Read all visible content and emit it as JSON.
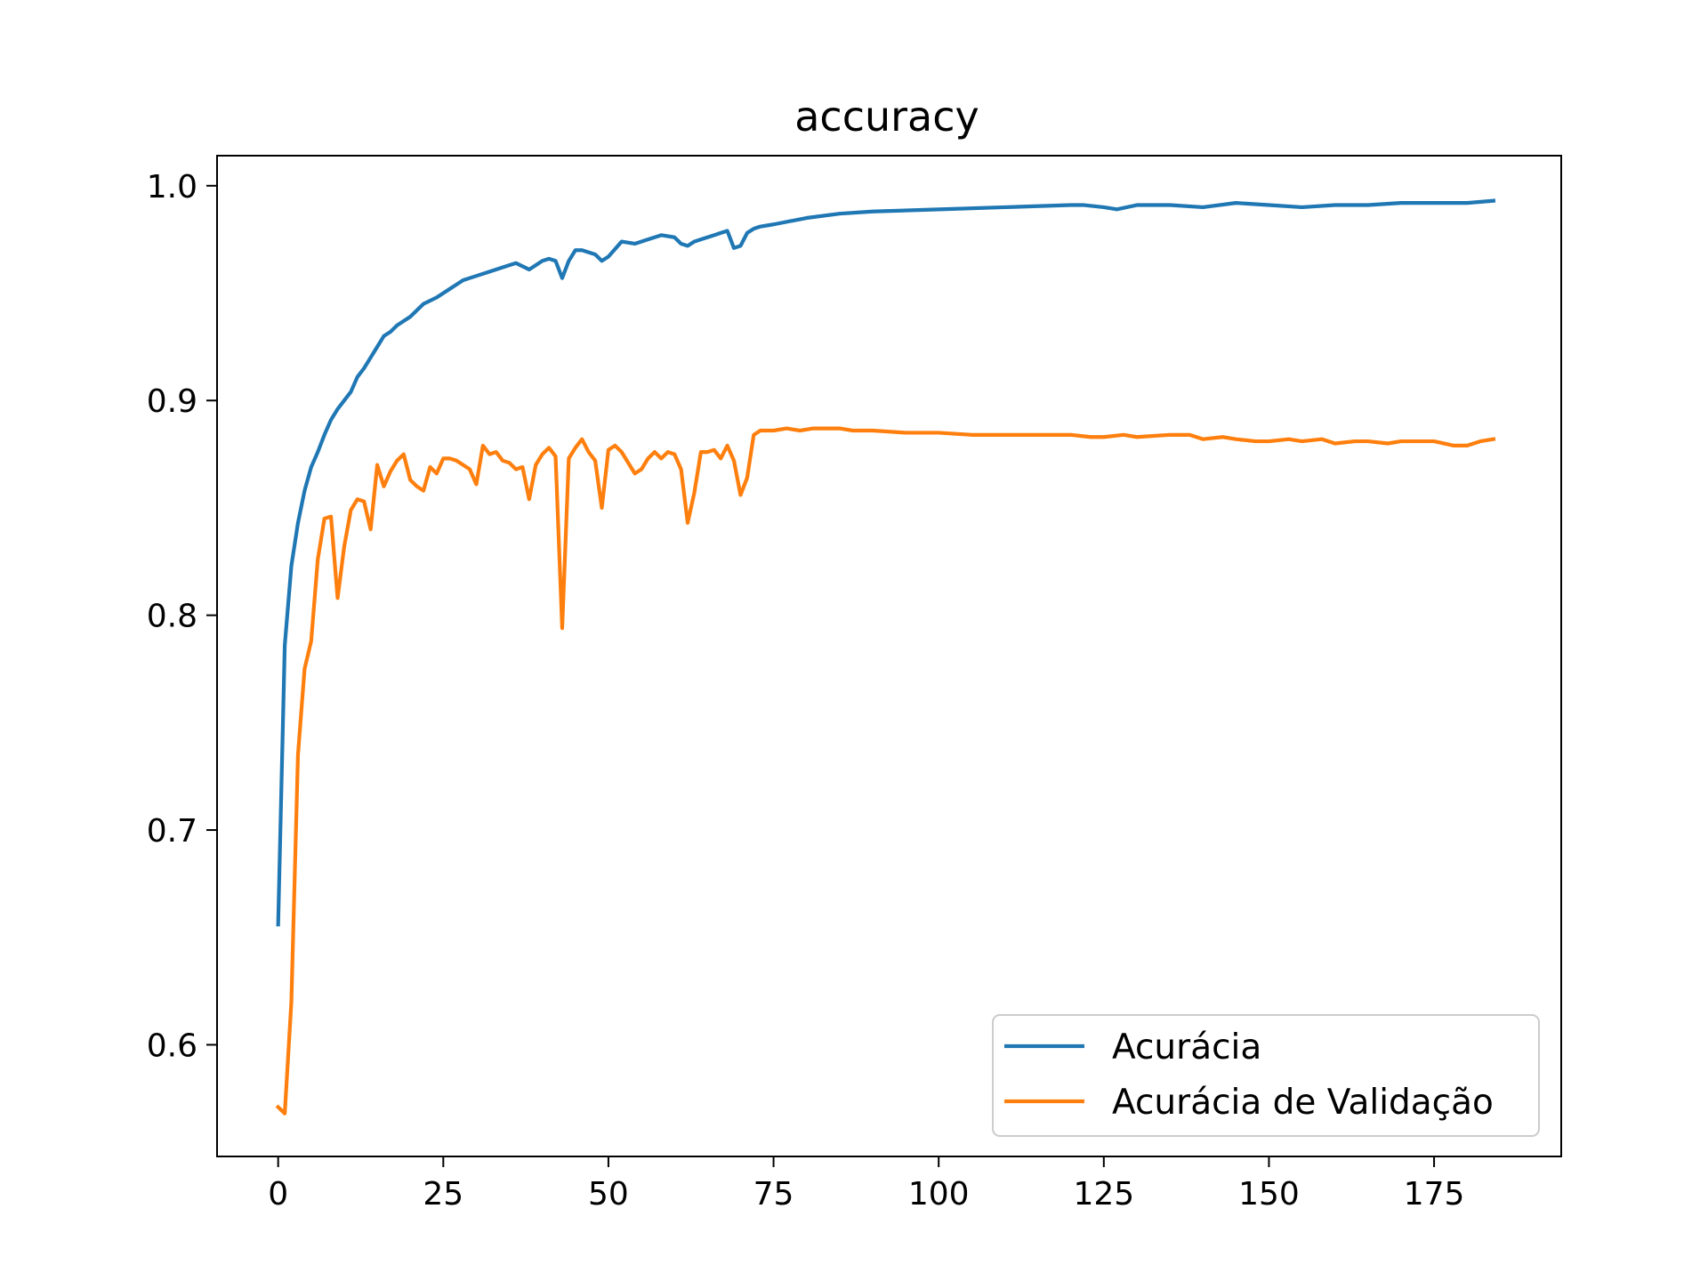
{
  "chart_data": {
    "type": "line",
    "title": "accuracy",
    "xlabel": "",
    "ylabel": "",
    "xlim": [
      -9.25,
      194.25
    ],
    "ylim": [
      0.548,
      1.014
    ],
    "xticks": [
      0,
      25,
      50,
      75,
      100,
      125,
      150,
      175
    ],
    "yticks": [
      0.6,
      0.7,
      0.8,
      0.9,
      1.0
    ],
    "xtick_labels": [
      "0",
      "25",
      "50",
      "75",
      "100",
      "125",
      "150",
      "175"
    ],
    "ytick_labels": [
      "0.6",
      "0.7",
      "0.8",
      "0.9",
      "1.0"
    ],
    "grid": false,
    "legend_position": "lower-right",
    "series": [
      {
        "name": "Acurácia",
        "color": "#1f77b4",
        "x": [
          0,
          1,
          2,
          3,
          4,
          5,
          6,
          7,
          8,
          9,
          10,
          11,
          12,
          13,
          14,
          15,
          16,
          17,
          18,
          19,
          20,
          22,
          24,
          26,
          28,
          30,
          32,
          34,
          36,
          38,
          40,
          41,
          42,
          43,
          44,
          45,
          46,
          47,
          48,
          49,
          50,
          52,
          54,
          56,
          58,
          60,
          61,
          62,
          63,
          64,
          66,
          67,
          68,
          69,
          70,
          71,
          72,
          73,
          75,
          80,
          85,
          90,
          100,
          110,
          120,
          122,
          125,
          127,
          130,
          135,
          140,
          145,
          150,
          155,
          160,
          165,
          170,
          175,
          180,
          184
        ],
        "values": [
          0.656,
          0.786,
          0.823,
          0.843,
          0.858,
          0.869,
          0.876,
          0.884,
          0.891,
          0.896,
          0.9,
          0.904,
          0.911,
          0.915,
          0.92,
          0.925,
          0.93,
          0.932,
          0.935,
          0.937,
          0.939,
          0.945,
          0.948,
          0.952,
          0.956,
          0.958,
          0.96,
          0.962,
          0.964,
          0.961,
          0.965,
          0.966,
          0.965,
          0.957,
          0.965,
          0.97,
          0.97,
          0.969,
          0.968,
          0.965,
          0.967,
          0.974,
          0.973,
          0.975,
          0.977,
          0.976,
          0.973,
          0.972,
          0.974,
          0.975,
          0.977,
          0.978,
          0.979,
          0.971,
          0.972,
          0.978,
          0.98,
          0.981,
          0.982,
          0.985,
          0.987,
          0.988,
          0.989,
          0.99,
          0.991,
          0.991,
          0.99,
          0.989,
          0.991,
          0.991,
          0.99,
          0.992,
          0.991,
          0.99,
          0.991,
          0.991,
          0.992,
          0.992,
          0.992,
          0.993
        ]
      },
      {
        "name": "Acurácia de Validação",
        "color": "#ff7f0e",
        "x": [
          0,
          1,
          2,
          3,
          4,
          5,
          6,
          7,
          8,
          9,
          10,
          11,
          12,
          13,
          14,
          15,
          16,
          17,
          18,
          19,
          20,
          21,
          22,
          23,
          24,
          25,
          26,
          27,
          28,
          29,
          30,
          31,
          32,
          33,
          34,
          35,
          36,
          37,
          38,
          39,
          40,
          41,
          42,
          43,
          44,
          45,
          46,
          47,
          48,
          49,
          50,
          51,
          52,
          53,
          54,
          55,
          56,
          57,
          58,
          59,
          60,
          61,
          62,
          63,
          64,
          65,
          66,
          67,
          68,
          69,
          70,
          71,
          72,
          73,
          74,
          75,
          77,
          79,
          81,
          83,
          85,
          87,
          90,
          95,
          100,
          105,
          110,
          115,
          120,
          123,
          125,
          128,
          130,
          135,
          138,
          140,
          143,
          145,
          148,
          150,
          153,
          155,
          158,
          160,
          163,
          165,
          168,
          170,
          173,
          175,
          178,
          180,
          182,
          184
        ],
        "values": [
          0.571,
          0.568,
          0.62,
          0.735,
          0.775,
          0.788,
          0.826,
          0.845,
          0.846,
          0.808,
          0.832,
          0.849,
          0.854,
          0.853,
          0.84,
          0.87,
          0.86,
          0.867,
          0.872,
          0.875,
          0.863,
          0.86,
          0.858,
          0.869,
          0.866,
          0.873,
          0.873,
          0.872,
          0.87,
          0.868,
          0.861,
          0.879,
          0.875,
          0.876,
          0.872,
          0.871,
          0.868,
          0.869,
          0.854,
          0.87,
          0.875,
          0.878,
          0.874,
          0.794,
          0.873,
          0.878,
          0.882,
          0.876,
          0.872,
          0.85,
          0.877,
          0.879,
          0.876,
          0.871,
          0.866,
          0.868,
          0.873,
          0.876,
          0.873,
          0.876,
          0.875,
          0.868,
          0.843,
          0.857,
          0.876,
          0.876,
          0.877,
          0.873,
          0.879,
          0.872,
          0.856,
          0.864,
          0.884,
          0.886,
          0.886,
          0.886,
          0.887,
          0.886,
          0.887,
          0.887,
          0.887,
          0.886,
          0.886,
          0.885,
          0.885,
          0.884,
          0.884,
          0.884,
          0.884,
          0.883,
          0.883,
          0.884,
          0.883,
          0.884,
          0.884,
          0.882,
          0.883,
          0.882,
          0.881,
          0.881,
          0.882,
          0.881,
          0.882,
          0.88,
          0.881,
          0.881,
          0.88,
          0.881,
          0.881,
          0.881,
          0.879,
          0.879,
          0.881,
          0.882
        ]
      }
    ]
  }
}
